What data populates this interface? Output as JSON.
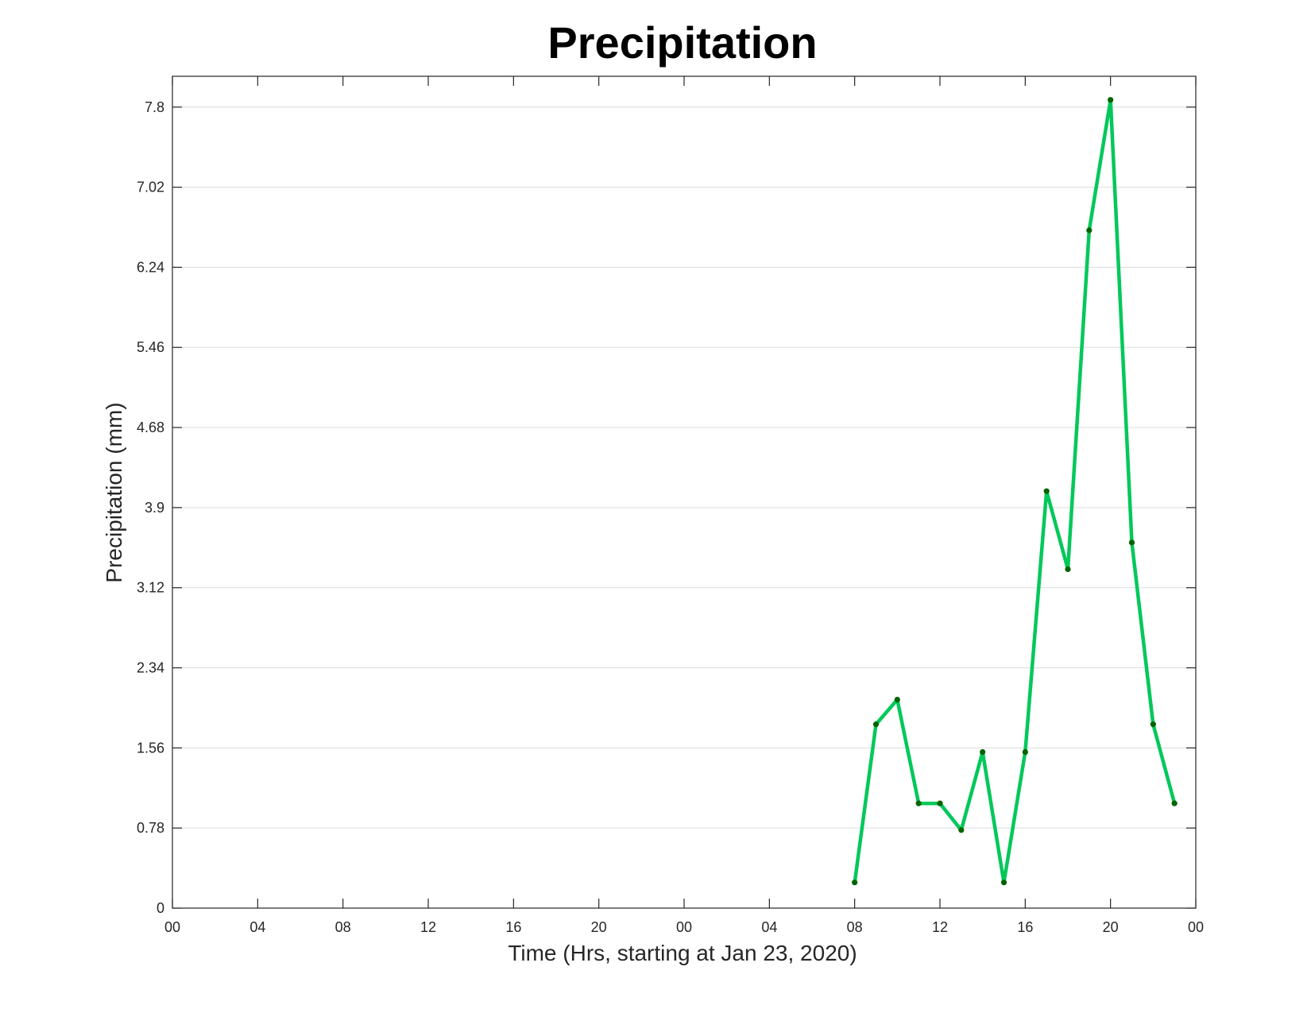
{
  "chart_data": {
    "type": "line",
    "title": "Precipitation",
    "xlabel": "Time (Hrs, starting at Jan 23, 2020)",
    "ylabel": "Precipitation (mm)",
    "x_unit": "hours",
    "xlim": [
      0,
      48
    ],
    "ylim": [
      0,
      8.1
    ],
    "x_ticks": [
      0,
      4,
      8,
      12,
      16,
      20,
      24,
      28,
      32,
      36,
      40,
      44,
      48
    ],
    "x_tick_labels": [
      "00",
      "04",
      "08",
      "12",
      "16",
      "20",
      "00",
      "04",
      "08",
      "12",
      "16",
      "20",
      "00"
    ],
    "y_ticks": [
      0,
      0.78,
      1.56,
      2.34,
      3.12,
      3.9,
      4.68,
      5.46,
      6.24,
      7.02,
      7.8
    ],
    "y_tick_labels": [
      "0",
      "0.78",
      "1.56",
      "2.34",
      "3.12",
      "3.9",
      "4.68",
      "5.46",
      "6.24",
      "7.02",
      "7.8"
    ],
    "grid": "horizontal",
    "series": [
      {
        "color": "#00c85a",
        "marker_color": "#006400",
        "x": [
          32,
          33,
          34,
          35,
          36,
          37,
          38,
          39,
          40,
          41,
          42,
          43,
          44,
          45,
          46,
          47
        ],
        "values": [
          0.25,
          1.79,
          2.03,
          1.02,
          1.02,
          0.76,
          1.52,
          0.25,
          1.52,
          4.06,
          3.3,
          6.6,
          7.87,
          3.56,
          1.79,
          1.02
        ]
      }
    ]
  }
}
